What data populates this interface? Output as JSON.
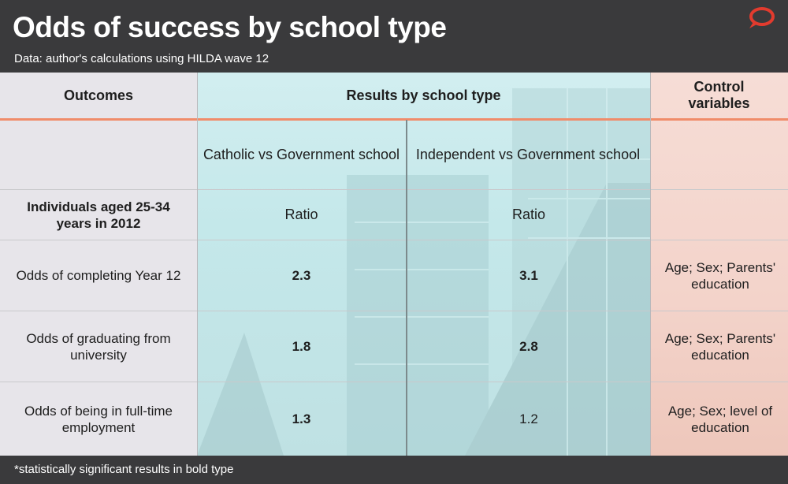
{
  "title": "Odds of success by school type",
  "subtitle": "Data: author's calculations using HILDA wave 12",
  "footnote": "*statistically significant results in bold type",
  "colors": {
    "header_bg": "#3a3a3c",
    "accent": "#f08c6a",
    "teal": "#c4e8ea",
    "peach": "#f3d3ca",
    "logo": "#e23b2e"
  },
  "logo_icon": "speech-bubble-icon",
  "chart_data": {
    "type": "table",
    "headers": {
      "outcomes": "Outcomes",
      "results": "Results by school type",
      "controls": "Control variables"
    },
    "columns": [
      "Catholic vs Government school",
      "Independent vs Government school"
    ],
    "group_label": "Individuals aged 25-34 years in 2012",
    "unit": "Ratio",
    "rows": [
      {
        "outcome": "Odds of completing Year 12",
        "catholic": 2.3,
        "catholic_significant": true,
        "independent": 3.1,
        "independent_significant": true,
        "controls": "Age; Sex; Parents' education"
      },
      {
        "outcome": "Odds of graduating from university",
        "catholic": 1.8,
        "catholic_significant": true,
        "independent": 2.8,
        "independent_significant": true,
        "controls": "Age; Sex; Parents' education"
      },
      {
        "outcome": "Odds of being in full-time employment",
        "catholic": 1.3,
        "catholic_significant": true,
        "independent": 1.2,
        "independent_significant": false,
        "controls": "Age; Sex; level of education"
      }
    ]
  }
}
